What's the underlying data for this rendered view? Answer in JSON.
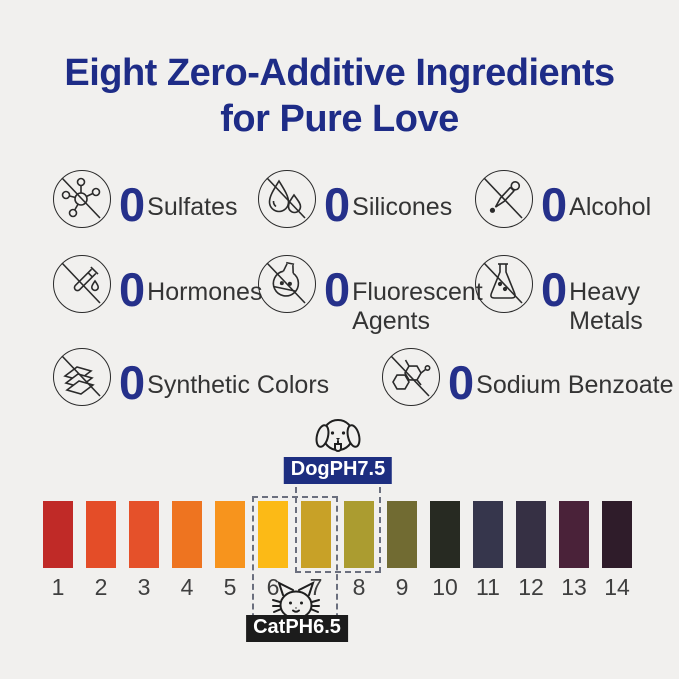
{
  "title": {
    "line1": "Eight Zero-Additive Ingredients",
    "line2": "for Pure Love"
  },
  "ingredients": [
    {
      "zero": "0",
      "label": "Sulfates",
      "icon": "no-molecule-icon"
    },
    {
      "zero": "0",
      "label": "Silicones",
      "icon": "no-water-drops-icon"
    },
    {
      "zero": "0",
      "label": "Alcohol",
      "icon": "no-dropper-icon"
    },
    {
      "zero": "0",
      "label": "Hormones",
      "icon": "no-test-tube-icon"
    },
    {
      "zero": "0",
      "label": "Fluorescent Agents",
      "icon": "no-round-flask-icon"
    },
    {
      "zero": "0",
      "label": "Heavy Metals",
      "icon": "no-erlenmeyer-flask-icon"
    },
    {
      "zero": "0",
      "label": "Synthetic Colors",
      "icon": "no-color-swatches-icon"
    },
    {
      "zero": "0",
      "label": "Sodium Benzoate",
      "icon": "no-benzene-molecule-icon"
    }
  ],
  "ph_scale": {
    "type": "ph-color-scale",
    "values": [
      "1",
      "2",
      "3",
      "4",
      "5",
      "6",
      "7",
      "8",
      "9",
      "10",
      "11",
      "12",
      "13",
      "14"
    ],
    "bar_colors": [
      "#c02a27",
      "#e44d28",
      "#e5512a",
      "#ee7420",
      "#f7941d",
      "#fcba16",
      "#c8a127",
      "#ab9c30",
      "#716b32",
      "#272a22",
      "#36364c",
      "#363044",
      "#4a2239",
      "#2f1c2a"
    ],
    "dog_marker": {
      "label": "DogPH7.5",
      "range": [
        7,
        8
      ],
      "icon": "dog-face-icon"
    },
    "cat_marker": {
      "label": "CatPH6.5",
      "range": [
        6,
        7
      ],
      "icon": "cat-face-icon"
    }
  },
  "colors": {
    "background": "#f1f0ee",
    "title_blue": "#1e2c87",
    "zero_blue": "#25308a",
    "dog_tag_bg": "#1d2e80",
    "cat_tag_bg": "#1c1c1c",
    "dashed_border": "#6b6f7e"
  }
}
